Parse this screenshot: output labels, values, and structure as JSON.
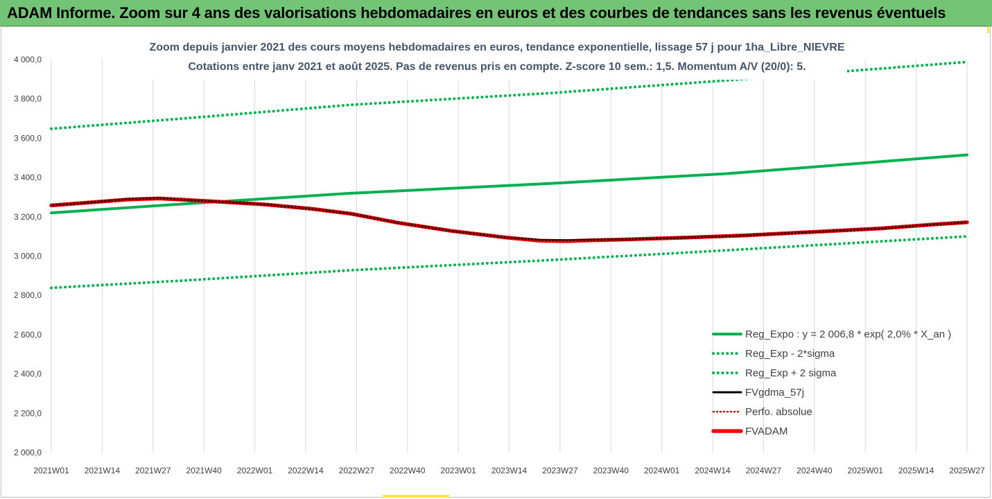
{
  "banner": {
    "title": "ADAM Informe. Zoom sur 4 ans des valorisations hebdomadaires en euros et des courbes de tendances sans les revenus éventuels"
  },
  "chart_data": {
    "type": "line",
    "title": "Zoom depuis janvier 2021 des cours moyens hebdomadaires en euros, tendance exponentielle, lissage 57 j pour 1ha_Libre_NIEVRE",
    "subtitle": "Cotations entre janv 2021 et août 2025.  Pas de revenus pris en compte. Z-score 10 sem.: 1,5. Momentum A/V (20/0): 5.",
    "xlabel": "",
    "ylabel": "",
    "ylim": [
      2000,
      4000
    ],
    "y_ticks": [
      "2 000,0",
      "2 200,0",
      "2 400,0",
      "2 600,0",
      "2 800,0",
      "3 000,0",
      "3 200,0",
      "3 400,0",
      "3 600,0",
      "3 800,0",
      "4 000,0"
    ],
    "x_tick_labels": [
      "2021W01",
      "2021W14",
      "2021W27",
      "2021W40",
      "2022W01",
      "2022W14",
      "2022W27",
      "2022W40",
      "2023W01",
      "2023W14",
      "2023W27",
      "2023W40",
      "2024W01",
      "2024W14",
      "2024W27",
      "2024W40",
      "2025W01",
      "2025W14",
      "2025W27"
    ],
    "x_week_index_range": [
      0,
      238
    ],
    "grid": "vertical",
    "legend_position": "bottom-right",
    "series": [
      {
        "name": "Reg_Expo : y = 2 006,8 * exp( 2,0% *  X_an )",
        "style": "solid",
        "color": "#00b050",
        "points": [
          [
            0,
            3220
          ],
          [
            34,
            3265
          ],
          [
            78,
            3320
          ],
          [
            130,
            3370
          ],
          [
            176,
            3420
          ],
          [
            238,
            3515
          ]
        ]
      },
      {
        "name": "Reg_Exp - 2*sigma",
        "style": "dotted",
        "color": "#00b050",
        "points": [
          [
            0,
            2838
          ],
          [
            34,
            2875
          ],
          [
            78,
            2928
          ],
          [
            130,
            2980
          ],
          [
            176,
            3030
          ],
          [
            238,
            3100
          ]
        ]
      },
      {
        "name": "Reg_Exp + 2 sigma",
        "style": "dotted",
        "color": "#00b050",
        "points": [
          [
            0,
            3648
          ],
          [
            34,
            3700
          ],
          [
            78,
            3770
          ],
          [
            130,
            3830
          ],
          [
            176,
            3895
          ],
          [
            238,
            3988
          ]
        ]
      },
      {
        "name": "FVgdma_57j",
        "style": "solid",
        "color": "#000000",
        "points": [
          [
            0,
            3258
          ],
          [
            10,
            3273
          ],
          [
            20,
            3290
          ],
          [
            28,
            3295
          ],
          [
            36,
            3285
          ],
          [
            45,
            3275
          ],
          [
            56,
            3262
          ],
          [
            68,
            3240
          ],
          [
            78,
            3215
          ],
          [
            90,
            3170
          ],
          [
            104,
            3128
          ],
          [
            118,
            3095
          ],
          [
            127,
            3082
          ],
          [
            134,
            3080
          ],
          [
            140,
            3082
          ],
          [
            150,
            3085
          ],
          [
            166,
            3095
          ],
          [
            180,
            3105
          ],
          [
            200,
            3125
          ],
          [
            215,
            3140
          ],
          [
            230,
            3162
          ],
          [
            238,
            3172
          ]
        ]
      },
      {
        "name": "Perfo. absolue",
        "style": "dotted",
        "color": "#c00000",
        "points": [
          [
            0,
            3258
          ],
          [
            10,
            3273
          ],
          [
            20,
            3290
          ],
          [
            28,
            3295
          ],
          [
            36,
            3285
          ],
          [
            45,
            3275
          ],
          [
            56,
            3262
          ],
          [
            68,
            3240
          ],
          [
            78,
            3215
          ],
          [
            90,
            3170
          ],
          [
            104,
            3128
          ],
          [
            118,
            3095
          ],
          [
            127,
            3080
          ],
          [
            134,
            3078
          ],
          [
            140,
            3080
          ],
          [
            150,
            3085
          ],
          [
            166,
            3095
          ],
          [
            180,
            3105
          ],
          [
            200,
            3125
          ],
          [
            215,
            3140
          ],
          [
            230,
            3162
          ],
          [
            238,
            3172
          ]
        ]
      },
      {
        "name": "FVADAM",
        "style": "solid",
        "color": "#ff0000",
        "points": [
          [
            0,
            3258
          ],
          [
            10,
            3273
          ],
          [
            20,
            3288
          ],
          [
            28,
            3293
          ],
          [
            36,
            3285
          ],
          [
            45,
            3275
          ],
          [
            56,
            3262
          ],
          [
            68,
            3240
          ],
          [
            78,
            3215
          ],
          [
            90,
            3170
          ],
          [
            104,
            3128
          ],
          [
            118,
            3095
          ],
          [
            127,
            3078
          ],
          [
            134,
            3076
          ],
          [
            140,
            3080
          ],
          [
            150,
            3085
          ],
          [
            166,
            3095
          ],
          [
            180,
            3105
          ],
          [
            200,
            3125
          ],
          [
            215,
            3140
          ],
          [
            230,
            3162
          ],
          [
            238,
            3172
          ]
        ]
      }
    ]
  }
}
